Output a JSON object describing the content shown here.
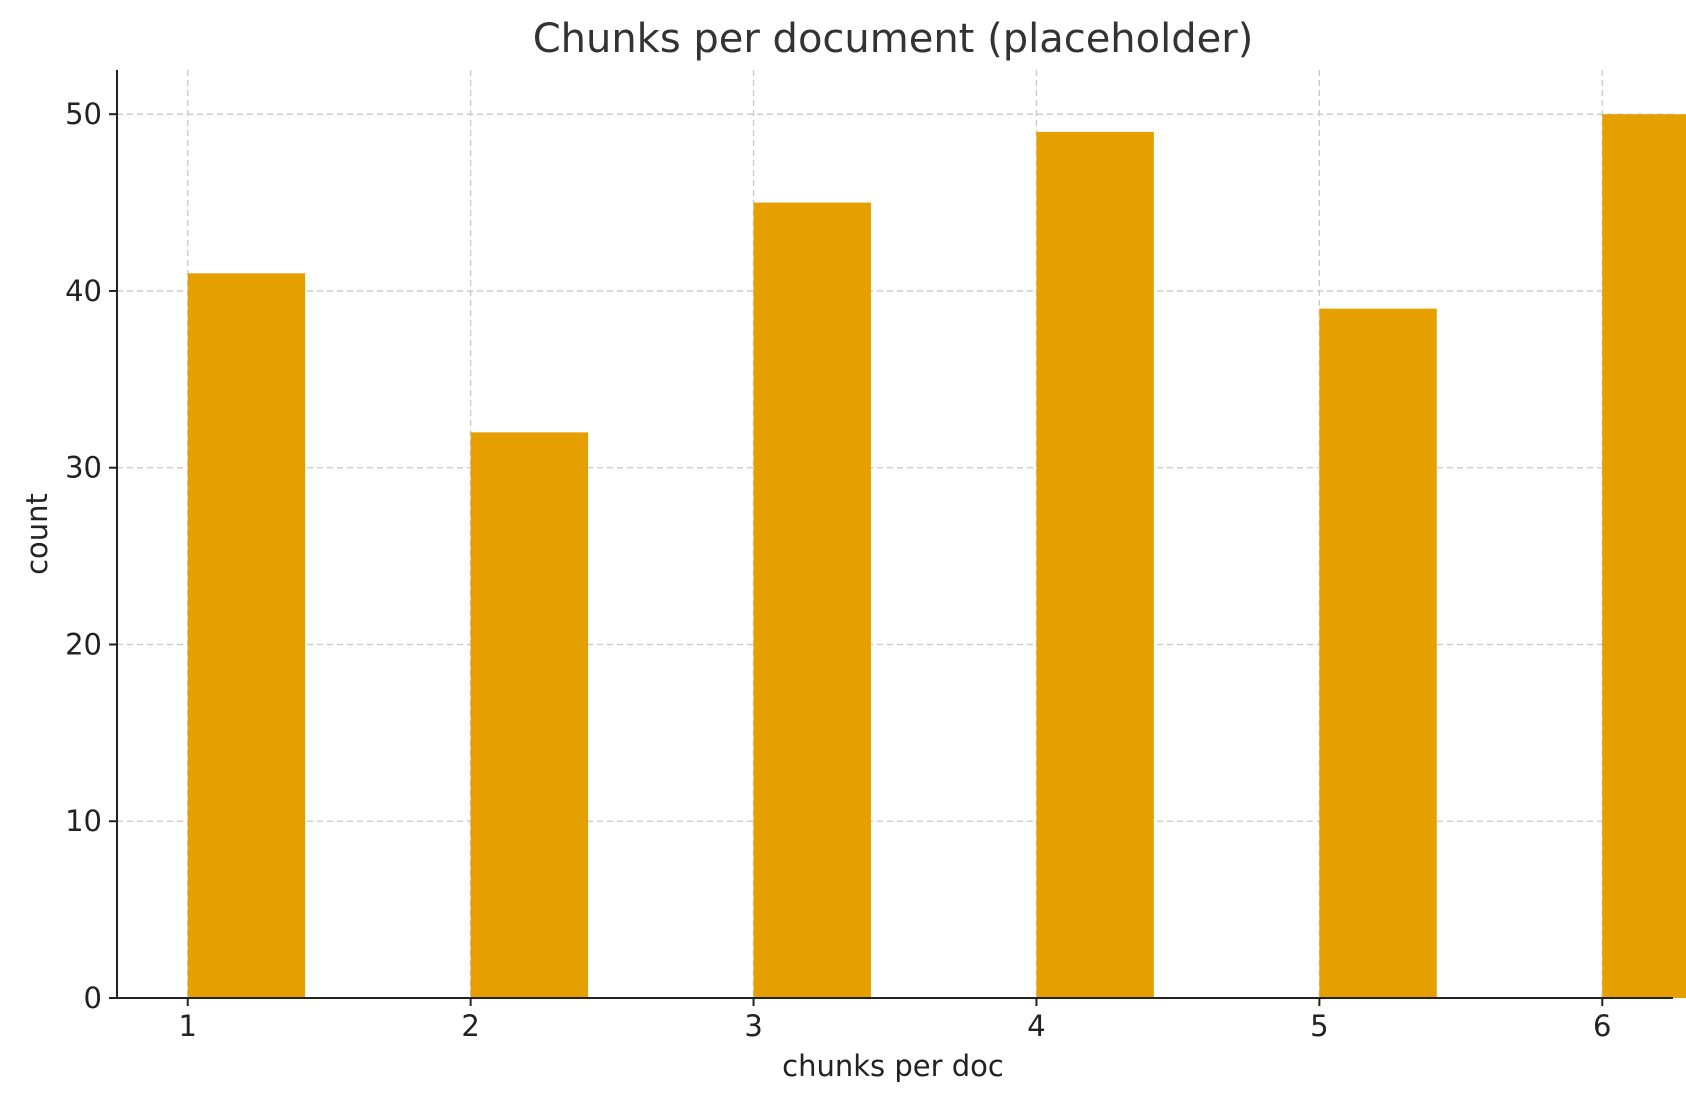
{
  "chart_data": {
    "type": "bar",
    "title": "Chunks per document (placeholder)",
    "xlabel": "chunks per doc",
    "ylabel": "count",
    "x": [
      1,
      2,
      3,
      4,
      5,
      6
    ],
    "values": [
      41,
      32,
      45,
      49,
      39,
      50
    ],
    "x_ticks": [
      "1",
      "2",
      "3",
      "4",
      "5",
      "6"
    ],
    "y_ticks": [
      "0",
      "10",
      "20",
      "30",
      "40",
      "50"
    ],
    "xlim": [
      0.75,
      6.25
    ],
    "ylim": [
      0,
      52.5
    ],
    "bar_color": "#E5A000",
    "grid": true
  }
}
